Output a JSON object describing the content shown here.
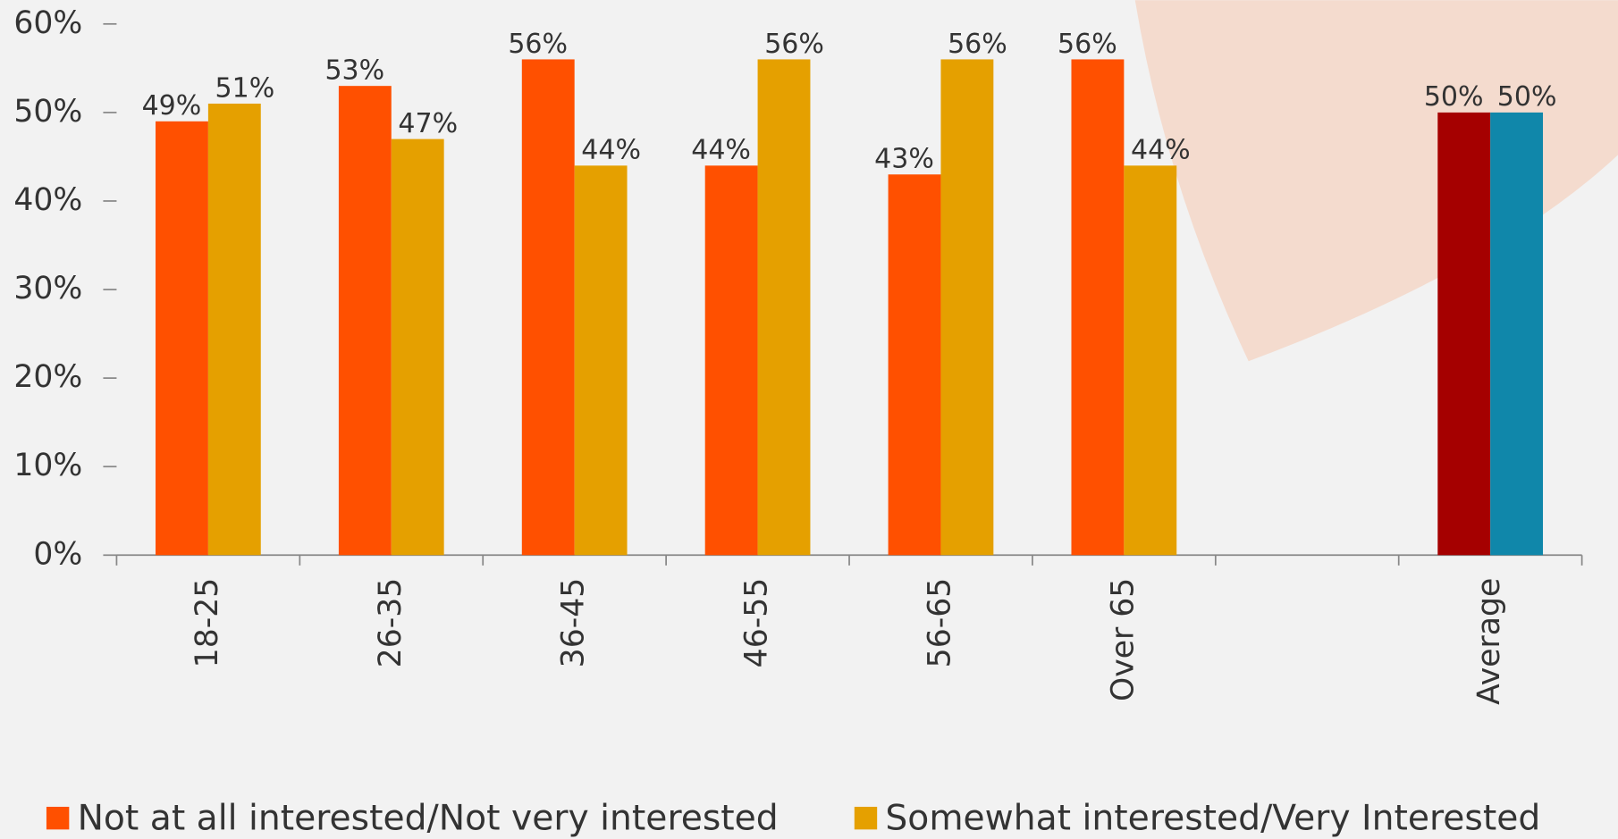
{
  "chart_data": {
    "type": "bar",
    "categories": [
      "18-25",
      "26-35",
      "36-45",
      "46-55",
      "56-65",
      "Over 65",
      null,
      "Average"
    ],
    "series": [
      {
        "name": "Not at all interested/Not very interested",
        "color": "#ff5000",
        "point_colors": [
          "#ff5000",
          "#ff5000",
          "#ff5000",
          "#ff5000",
          "#ff5000",
          "#ff5000",
          null,
          "#a50000"
        ],
        "values": [
          49,
          53,
          56,
          44,
          43,
          56,
          null,
          50
        ],
        "value_labels": [
          "49%",
          "53%",
          "56%",
          "44%",
          "43%",
          "56%",
          null,
          "50%"
        ]
      },
      {
        "name": "Somewhat interested/Very Interested",
        "color": "#e5a000",
        "point_colors": [
          "#e5a000",
          "#e5a000",
          "#e5a000",
          "#e5a000",
          "#e5a000",
          "#e5a000",
          null,
          "#1087aa"
        ],
        "values": [
          51,
          47,
          44,
          56,
          56,
          44,
          null,
          50
        ],
        "value_labels": [
          "51%",
          "47%",
          "44%",
          "56%",
          "56%",
          "44%",
          null,
          "50%"
        ]
      }
    ],
    "ylim": [
      0,
      60
    ],
    "yticks": [
      {
        "value": 0,
        "label": "0%"
      },
      {
        "value": 10,
        "label": "10%"
      },
      {
        "value": 20,
        "label": "20%"
      },
      {
        "value": 30,
        "label": "30%"
      },
      {
        "value": 40,
        "label": "40%"
      },
      {
        "value": 50,
        "label": "50%"
      },
      {
        "value": 60,
        "label": "60%"
      }
    ],
    "grid": false,
    "legend": "bottom"
  }
}
